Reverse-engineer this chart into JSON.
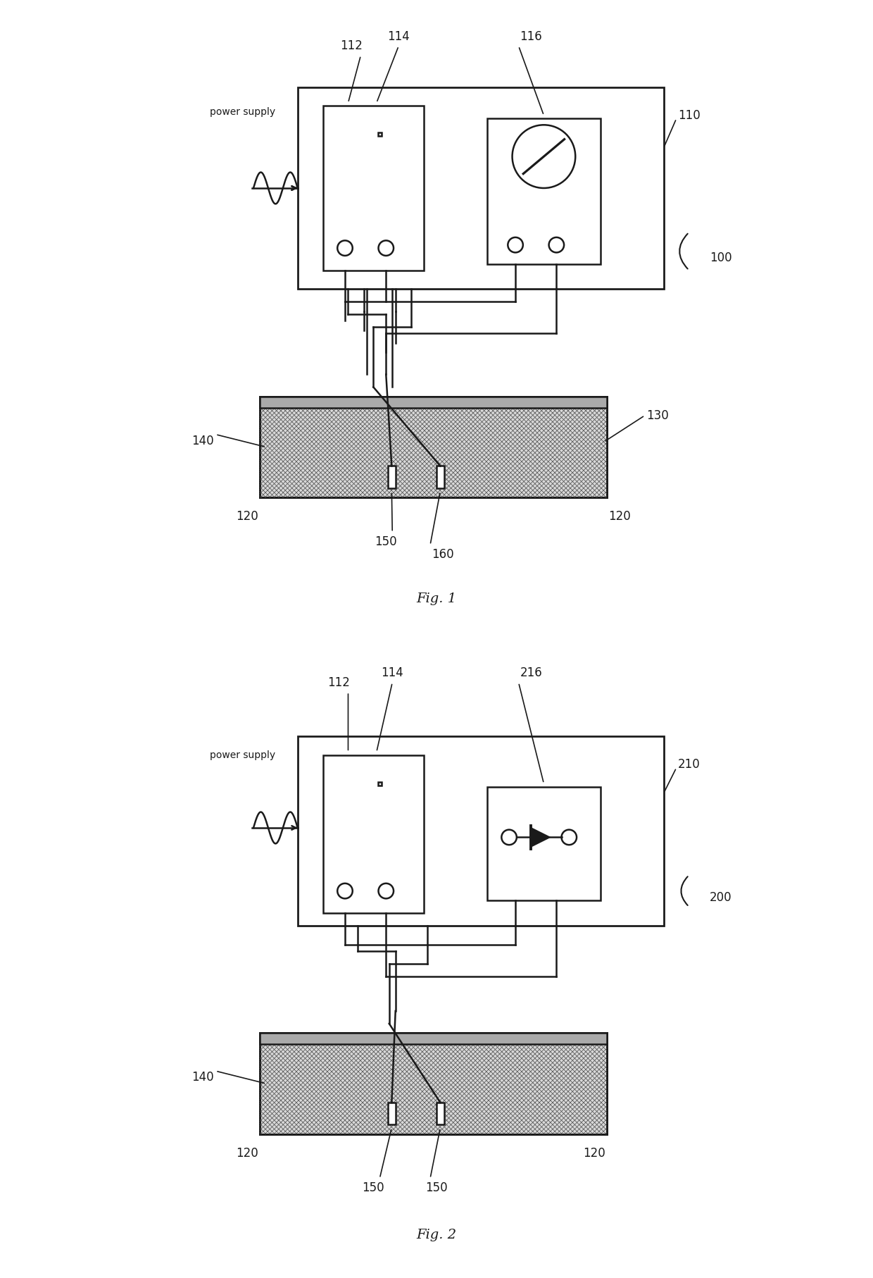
{
  "fig_width": 12.4,
  "fig_height": 18.14,
  "bg_color": "#ffffff",
  "line_color": "#1a1a1a",
  "lw": 1.8,
  "fig1": {
    "title": "Fig. 1",
    "label_100": "100",
    "label_110": "110",
    "label_112": "112",
    "label_114": "114",
    "label_116": "116",
    "label_120a": "120",
    "label_120b": "120",
    "label_130": "130",
    "label_140": "140",
    "label_150": "150",
    "label_160": "160",
    "power_supply": "power supply"
  },
  "fig2": {
    "title": "Fig. 2",
    "label_200": "200",
    "label_210": "210",
    "label_112": "112",
    "label_114": "114",
    "label_216": "216",
    "label_120a": "120",
    "label_120b": "120",
    "label_140": "140",
    "label_150a": "150",
    "label_150b": "150",
    "power_supply": "power supply"
  }
}
